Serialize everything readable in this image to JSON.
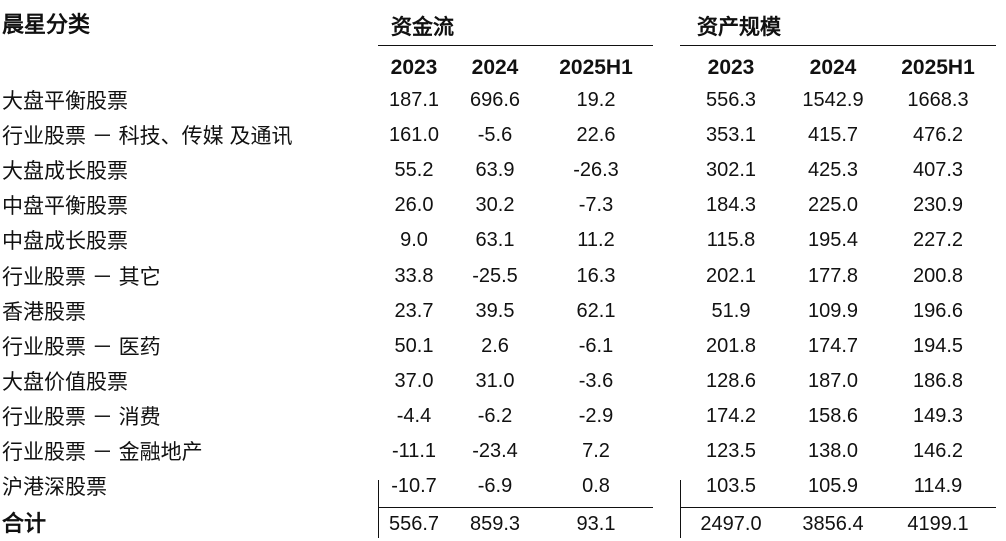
{
  "header": {
    "category_label": "晨星分类",
    "flow_group": "资金流",
    "aum_group": "资产规模",
    "years": [
      "2023",
      "2024",
      "2025H1"
    ]
  },
  "rows": [
    {
      "label": "大盘平衡股票",
      "flow": [
        "187.1",
        "696.6",
        "19.2"
      ],
      "aum": [
        "556.3",
        "1542.9",
        "1668.3"
      ]
    },
    {
      "label": "行业股票 － 科技、传媒 及通讯",
      "flow": [
        "161.0",
        "-5.6",
        "22.6"
      ],
      "aum": [
        "353.1",
        "415.7",
        "476.2"
      ]
    },
    {
      "label": "大盘成长股票",
      "flow": [
        "55.2",
        "63.9",
        "-26.3"
      ],
      "aum": [
        "302.1",
        "425.3",
        "407.3"
      ]
    },
    {
      "label": "中盘平衡股票",
      "flow": [
        "26.0",
        "30.2",
        "-7.3"
      ],
      "aum": [
        "184.3",
        "225.0",
        "230.9"
      ]
    },
    {
      "label": "中盘成长股票",
      "flow": [
        "9.0",
        "63.1",
        "11.2"
      ],
      "aum": [
        "115.8",
        "195.4",
        "227.2"
      ]
    },
    {
      "label": "行业股票 － 其它",
      "flow": [
        "33.8",
        "-25.5",
        "16.3"
      ],
      "aum": [
        "202.1",
        "177.8",
        "200.8"
      ]
    },
    {
      "label": "香港股票",
      "flow": [
        "23.7",
        "39.5",
        "62.1"
      ],
      "aum": [
        "51.9",
        "109.9",
        "196.6"
      ]
    },
    {
      "label": "行业股票 － 医药",
      "flow": [
        "50.1",
        "2.6",
        "-6.1"
      ],
      "aum": [
        "201.8",
        "174.7",
        "194.5"
      ]
    },
    {
      "label": "大盘价值股票",
      "flow": [
        "37.0",
        "31.0",
        "-3.6"
      ],
      "aum": [
        "128.6",
        "187.0",
        "186.8"
      ]
    },
    {
      "label": "行业股票 － 消费",
      "flow": [
        "-4.4",
        "-6.2",
        "-2.9"
      ],
      "aum": [
        "174.2",
        "158.6",
        "149.3"
      ]
    },
    {
      "label": "行业股票 － 金融地产",
      "flow": [
        "-11.1",
        "-23.4",
        "7.2"
      ],
      "aum": [
        "123.5",
        "138.0",
        "146.2"
      ]
    },
    {
      "label": "沪港深股票",
      "flow": [
        "-10.7",
        "-6.9",
        "0.8"
      ],
      "aum": [
        "103.5",
        "105.9",
        "114.9"
      ]
    }
  ],
  "total": {
    "label": "合计",
    "flow": [
      "556.7",
      "859.3",
      "93.1"
    ],
    "aum": [
      "2497.0",
      "3856.4",
      "4199.1"
    ]
  }
}
